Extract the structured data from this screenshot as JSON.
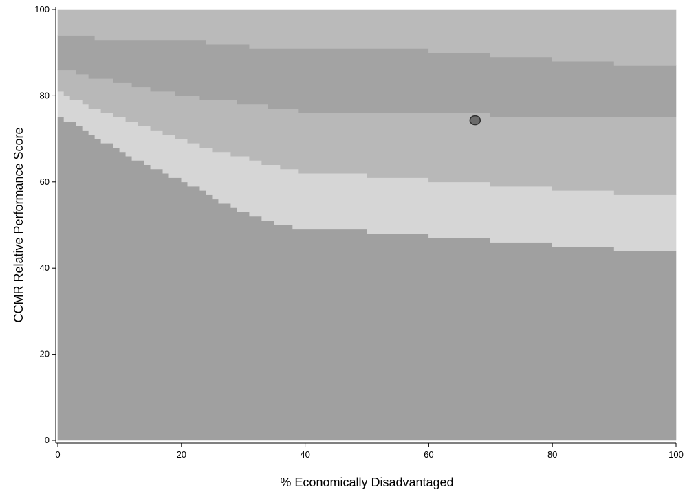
{
  "chart_data": {
    "type": "area",
    "title": "",
    "xlabel": "% Economically Disadvantaged",
    "ylabel": "CCMR Relative Performance Score",
    "xlim": [
      0,
      100
    ],
    "ylim": [
      0,
      100
    ],
    "xticks": [
      0,
      20,
      40,
      60,
      80,
      100
    ],
    "yticks": [
      0,
      20,
      40,
      60,
      80,
      100
    ],
    "grid": false,
    "legend": "none",
    "band_colors": [
      "#a0a0a0",
      "#d6d6d6",
      "#b8b8b8",
      "#a3a3a3",
      "#bababa"
    ],
    "boundaries": {
      "x": [
        0,
        1,
        2,
        3,
        4,
        5,
        6,
        7,
        8,
        9,
        10,
        11,
        12,
        13,
        14,
        15,
        16,
        17,
        18,
        19,
        20,
        21,
        22,
        23,
        24,
        25,
        26,
        27,
        28,
        29,
        30,
        31,
        32,
        33,
        34,
        35,
        36,
        37,
        38,
        39,
        40,
        50,
        60,
        70,
        80,
        90,
        100
      ],
      "upper_bottom_band": [
        75,
        74,
        74,
        73,
        72,
        71,
        70,
        69,
        69,
        68,
        67,
        66,
        65,
        65,
        64,
        63,
        63,
        62,
        61,
        61,
        60,
        59,
        59,
        58,
        57,
        56,
        55,
        55,
        54,
        53,
        53,
        52,
        52,
        51,
        51,
        50,
        50,
        50,
        49,
        49,
        49,
        48,
        47,
        46,
        45,
        44,
        44
      ],
      "upper_light_band": [
        81,
        80,
        79,
        79,
        78,
        77,
        77,
        76,
        76,
        75,
        75,
        74,
        74,
        73,
        73,
        72,
        72,
        71,
        71,
        70,
        70,
        69,
        69,
        68,
        68,
        67,
        67,
        67,
        66,
        66,
        66,
        65,
        65,
        64,
        64,
        64,
        63,
        63,
        63,
        62,
        62,
        61,
        60,
        59,
        58,
        57,
        57
      ],
      "upper_middle_band": [
        86,
        86,
        86,
        85,
        85,
        84,
        84,
        84,
        84,
        83,
        83,
        83,
        82,
        82,
        82,
        81,
        81,
        81,
        81,
        80,
        80,
        80,
        80,
        79,
        79,
        79,
        79,
        79,
        79,
        78,
        78,
        78,
        78,
        78,
        77,
        77,
        77,
        77,
        77,
        76,
        76,
        76,
        76,
        75,
        75,
        75,
        75
      ],
      "upper_dark_band": [
        94,
        94,
        94,
        94,
        94,
        94,
        93,
        93,
        93,
        93,
        93,
        93,
        93,
        93,
        93,
        93,
        93,
        93,
        93,
        93,
        93,
        93,
        93,
        93,
        92,
        92,
        92,
        92,
        92,
        92,
        92,
        91,
        91,
        91,
        91,
        91,
        91,
        91,
        91,
        91,
        91,
        91,
        90,
        89,
        88,
        87,
        87
      ]
    },
    "point": {
      "x": 67.5,
      "y": 74.3
    }
  }
}
